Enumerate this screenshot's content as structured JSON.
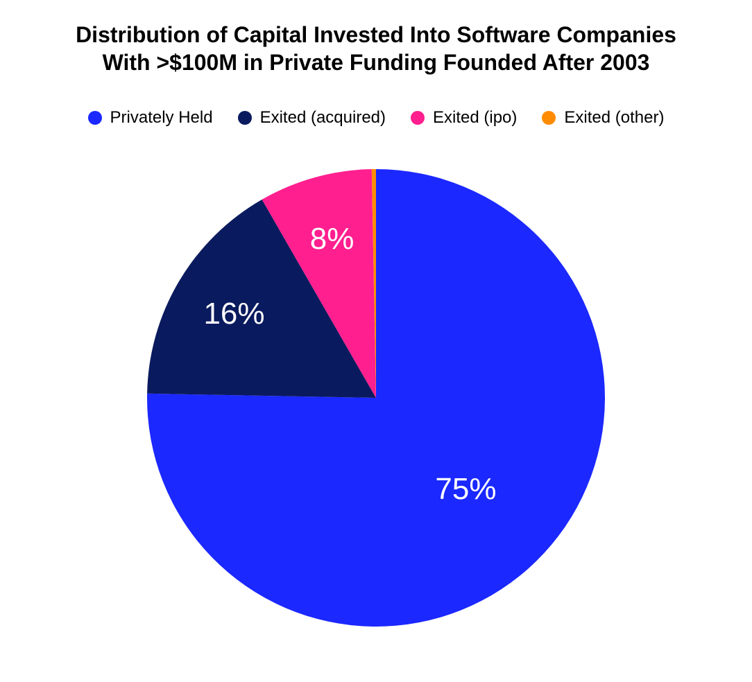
{
  "chart": {
    "type": "pie",
    "title_line1": "Distribution of Capital Invested Into Software Companies",
    "title_line2": "With >$100M in Private Funding Founded After 2003",
    "title_fontsize": 32,
    "title_color": "#000000",
    "background_color": "#ffffff",
    "legend": {
      "fontsize": 24,
      "dot_diameter": 20,
      "text_color": "#000000",
      "items": [
        {
          "label": "Privately Held",
          "color": "#1b28ff"
        },
        {
          "label": "Exited (acquired)",
          "color": "#0a1a5e"
        },
        {
          "label": "Exited (ipo)",
          "color": "#ff1f8f"
        },
        {
          "label": "Exited (other)",
          "color": "#ff8c00"
        }
      ]
    },
    "pie": {
      "diameter": 660,
      "start_angle_deg": 0,
      "slices": [
        {
          "label": "Privately Held",
          "value": 75.3,
          "color": "#1b28ff",
          "data_label": "75%",
          "label_fontsize": 44
        },
        {
          "label": "Exited (acquired)",
          "value": 16.4,
          "color": "#0a1a5e",
          "data_label": "16%",
          "label_fontsize": 44
        },
        {
          "label": "Exited (ipo)",
          "value": 8.0,
          "color": "#ff1f8f",
          "data_label": "8%",
          "label_fontsize": 44
        },
        {
          "label": "Exited (other)",
          "value": 0.3,
          "color": "#ff8c00",
          "data_label": "",
          "label_fontsize": 44
        }
      ],
      "label_color": "#ffffff",
      "label_radius_large": 0.56,
      "label_radius_small": 0.72,
      "small_slice_threshold": 20
    }
  }
}
